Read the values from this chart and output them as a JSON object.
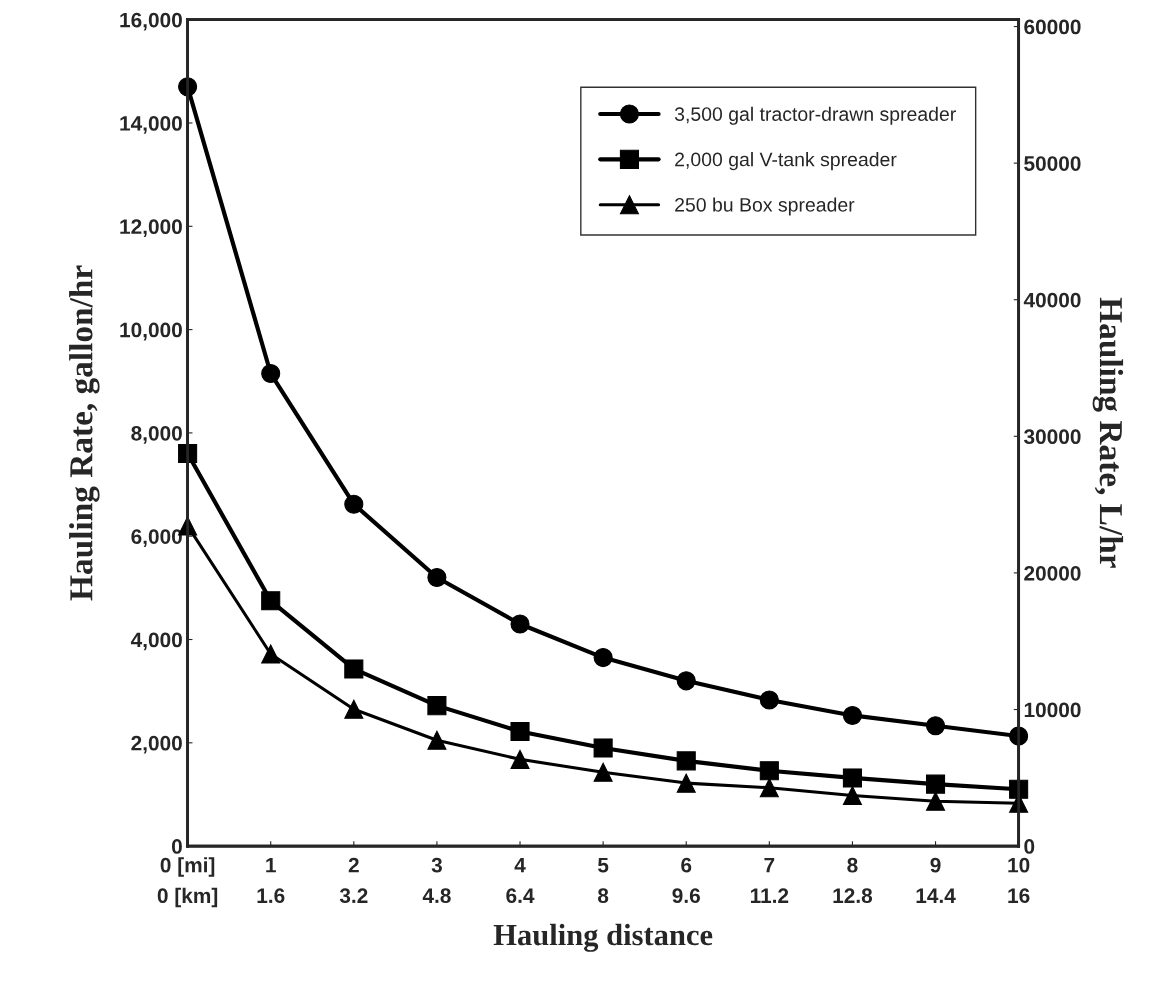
{
  "chart_data": {
    "type": "line",
    "xlabel": "Hauling distance",
    "ylabel": "Hauling Rate, gallon/hr",
    "y2label": "Hauling Rate, L/hr",
    "x": [
      0,
      1,
      2,
      3,
      4,
      5,
      6,
      7,
      8,
      9,
      10
    ],
    "series": [
      {
        "name": "3,500 gal tractor-drawn spreader",
        "color": "#000000",
        "marker": "circle",
        "values": [
          14700,
          9150,
          6620,
          5200,
          4300,
          3650,
          3200,
          2830,
          2530,
          2330,
          2130
        ]
      },
      {
        "name": "2,000 gal V-tank spreader",
        "color": "#000000",
        "marker": "square",
        "values": [
          7600,
          4750,
          3430,
          2720,
          2220,
          1900,
          1650,
          1460,
          1320,
          1200,
          1100
        ]
      },
      {
        "name": "250 bu Box spreader",
        "color": "#000000",
        "marker": "triangle",
        "values": [
          6200,
          3720,
          2650,
          2050,
          1680,
          1430,
          1220,
          1130,
          980,
          870,
          830
        ]
      }
    ],
    "xlim": [
      0,
      10
    ],
    "xticks": [
      {
        "value": 0,
        "label": "0 [mi]"
      },
      1,
      2,
      3,
      4,
      5,
      6,
      7,
      8,
      9,
      10
    ],
    "x2lim": [
      0,
      16
    ],
    "x2ticks": [
      {
        "value": 0,
        "label": "0 [km]"
      },
      1.6,
      3.2,
      4.8,
      6.4,
      8,
      9.6,
      11.2,
      12.8,
      14.4,
      16
    ],
    "ylim": [
      0,
      16000
    ],
    "yticks": [
      0,
      {
        "value": 2000,
        "label": "2,000"
      },
      {
        "value": 4000,
        "label": "4,000"
      },
      {
        "value": 6000,
        "label": "6,000"
      },
      {
        "value": 8000,
        "label": "8,000"
      },
      {
        "value": 10000,
        "label": "10,000"
      },
      {
        "value": 12000,
        "label": "12,000"
      },
      {
        "value": 14000,
        "label": "14,000"
      },
      {
        "value": 16000,
        "label": "16,000"
      }
    ],
    "y2lim": [
      0,
      60500
    ],
    "y2ticks": [
      0,
      10000,
      20000,
      30000,
      40000,
      50000,
      60000
    ],
    "legend": "top right",
    "grid": false,
    "line_style": "solid"
  }
}
